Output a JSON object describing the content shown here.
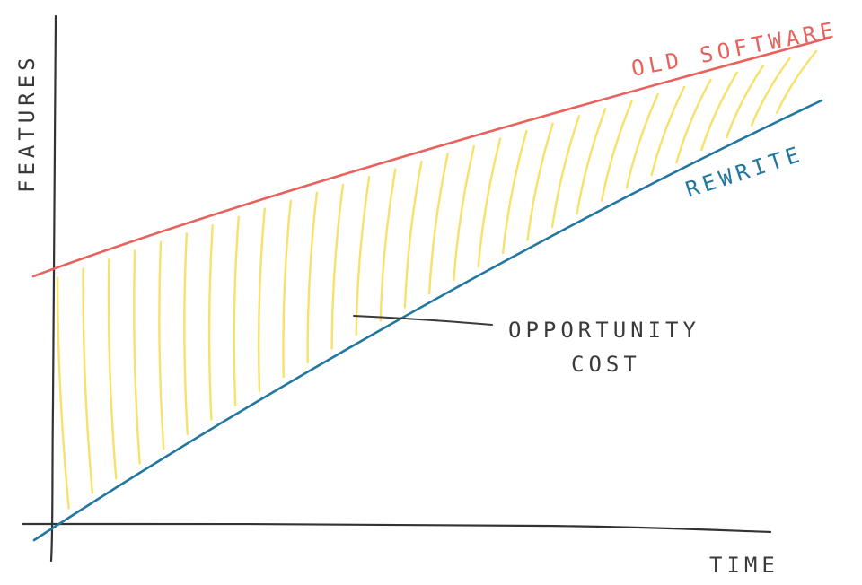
{
  "diagram": {
    "y_axis_label": "FEATURES",
    "x_axis_label": "TIME",
    "old_line_label": "OLD SOFTWARE",
    "rewrite_line_label": "REWRITE",
    "gap_label_line1": "OPPORTUNITY",
    "gap_label_line2": "COST"
  },
  "colors": {
    "axis": "#333333",
    "old_software": "#e8625d",
    "rewrite": "#2277a0",
    "opportunity_hatch": "#f7e16a",
    "text": "#3a3a3a"
  }
}
